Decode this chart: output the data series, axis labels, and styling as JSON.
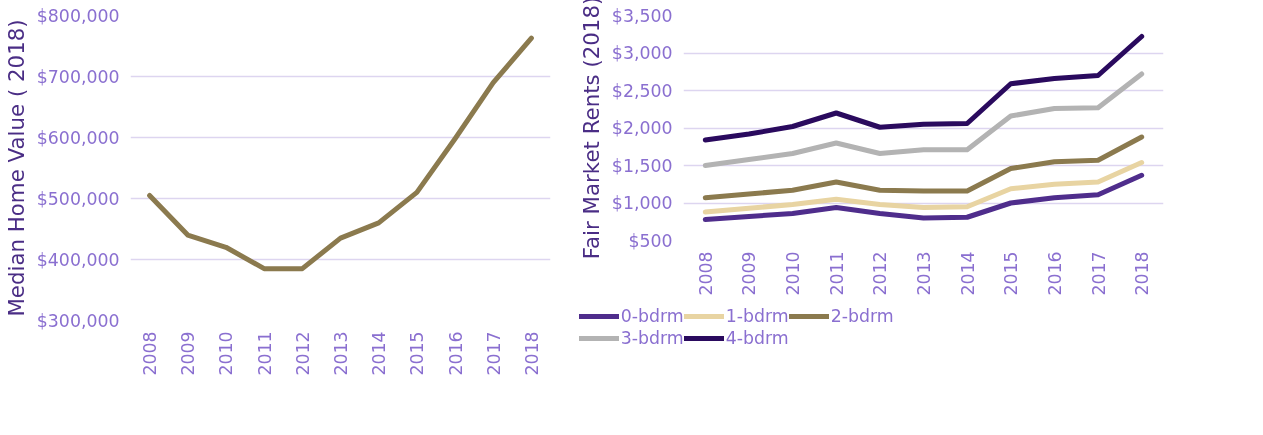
{
  "chart_data": [
    {
      "type": "line",
      "ylabel": "Median Home Value ( 2018)",
      "categories": [
        "2008",
        "2009",
        "2010",
        "2011",
        "2012",
        "2013",
        "2014",
        "2015",
        "2016",
        "2017",
        "2018"
      ],
      "series": [
        {
          "color": "#8b7a4e",
          "values": [
            505000,
            440000,
            420000,
            385000,
            385000,
            435000,
            460000,
            510000,
            598000,
            690000,
            763000
          ]
        }
      ],
      "ylim": [
        300000,
        800000
      ],
      "yticks": [
        {
          "value": 300000,
          "label": "$300,000"
        },
        {
          "value": 400000,
          "label": "$400,000"
        },
        {
          "value": 500000,
          "label": "$500,000"
        },
        {
          "value": 600000,
          "label": "$600,000"
        },
        {
          "value": 700000,
          "label": "$700,000"
        },
        {
          "value": 800000,
          "label": "$800,000"
        }
      ],
      "grid": "y"
    },
    {
      "type": "line",
      "ylabel": "Fair Market Rents (2018)",
      "categories": [
        "2008",
        "2009",
        "2010",
        "2011",
        "2012",
        "2013",
        "2014",
        "2015",
        "2016",
        "2017",
        "2018"
      ],
      "series": [
        {
          "name": "0-bdrm",
          "color": "#4f2d8c",
          "values": [
            780,
            820,
            860,
            940,
            860,
            800,
            810,
            1000,
            1070,
            1110,
            1370
          ]
        },
        {
          "name": "1-bdrm",
          "color": "#e8d4a2",
          "values": [
            880,
            930,
            980,
            1050,
            980,
            940,
            950,
            1190,
            1250,
            1280,
            1540
          ]
        },
        {
          "name": "2-bdrm",
          "color": "#8b7a4e",
          "values": [
            1070,
            1120,
            1170,
            1280,
            1170,
            1160,
            1160,
            1460,
            1550,
            1570,
            1880
          ]
        },
        {
          "name": "3-bdrm",
          "color": "#b3b3b3",
          "values": [
            1500,
            1580,
            1660,
            1800,
            1660,
            1710,
            1710,
            2160,
            2260,
            2270,
            2720
          ]
        },
        {
          "name": "4-bdrm",
          "color": "#2a0a5e",
          "values": [
            1840,
            1920,
            2020,
            2200,
            2010,
            2050,
            2060,
            2590,
            2660,
            2700,
            3220
          ]
        }
      ],
      "ylim": [
        500,
        3500
      ],
      "yticks": [
        {
          "value": 500,
          "label": "$500"
        },
        {
          "value": 1000,
          "label": "$1,000"
        },
        {
          "value": 1500,
          "label": "$1,500"
        },
        {
          "value": 2000,
          "label": "$2,000"
        },
        {
          "value": 2500,
          "label": "$2,500"
        },
        {
          "value": 3000,
          "label": "$3,000"
        },
        {
          "value": 3500,
          "label": "$3,500"
        }
      ],
      "grid": "y",
      "legend": "bottom"
    }
  ]
}
